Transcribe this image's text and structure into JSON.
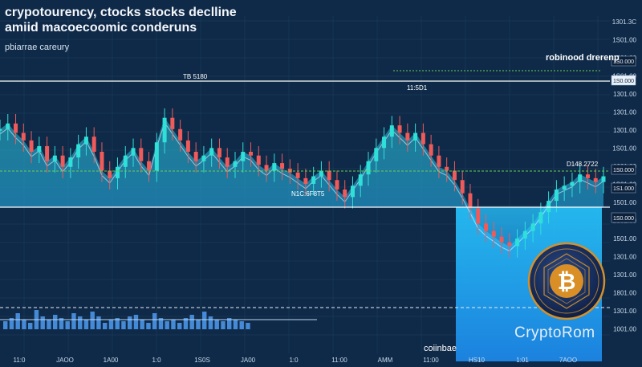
{
  "headline": {
    "line1": "crypotourency, ctocks stocks  declline",
    "line2": "amiid macoecoomic conderuns"
  },
  "subtitle": "pbiarrae careury",
  "brand_label": "robinood drerenp",
  "coinbase_label": "coiinbae",
  "watermark": "CryptoRom",
  "annotations": {
    "top_left": "TB 5180",
    "middle": "11:5D1",
    "right": "D148.2722",
    "lower_left": "N1C:6F8T5"
  },
  "colors": {
    "background": "#0f2a48",
    "bullish": "#2fe0d8",
    "bearish": "#ef5a5a",
    "area": "#39c7e0",
    "volume": "#4f9bf0",
    "highlight": "#2aa6ff",
    "logo_ring": "#d4902a"
  },
  "chart_data": {
    "type": "candlestick",
    "title": "crypotourency, ctocks stocks  declline amiid macoecoomic conderuns",
    "y_tick_labels": [
      "1301.3C",
      "1S01.00",
      "1301.00",
      "1S01.00",
      "1301.00",
      "1301.00",
      "1301.00",
      "1S01.00",
      "1001.00",
      "1S01.00",
      "1501.00",
      "1S01.00",
      "1501.00",
      "1301.00",
      "1301.00",
      "1801.00",
      "1301.00",
      "1001.00"
    ],
    "price_tags": [
      "1S0.000",
      "1S0.000",
      "1S0.000",
      "1S1.000",
      "1S0.000"
    ],
    "x_tick_labels": [
      "11:0",
      "JAOO",
      "1A00",
      "1:0",
      "1S0S",
      "JA00",
      "1:0",
      "11:00",
      "AMM",
      "11:00",
      "HS10",
      "1:01",
      "7AOO"
    ],
    "volume_series": [
      0.25,
      0.35,
      0.5,
      0.3,
      0.2,
      0.6,
      0.4,
      0.3,
      0.45,
      0.35,
      0.25,
      0.5,
      0.4,
      0.3,
      0.55,
      0.4,
      0.2,
      0.3,
      0.35,
      0.25,
      0.4,
      0.45,
      0.3,
      0.2,
      0.5,
      0.35,
      0.25,
      0.3,
      0.2,
      0.35,
      0.45,
      0.3,
      0.55,
      0.4,
      0.3,
      0.25,
      0.35,
      0.3,
      0.25,
      0.2
    ],
    "close_series": [
      0.72,
      0.75,
      0.7,
      0.66,
      0.6,
      0.63,
      0.55,
      0.58,
      0.52,
      0.57,
      0.64,
      0.68,
      0.6,
      0.5,
      0.46,
      0.52,
      0.58,
      0.62,
      0.55,
      0.5,
      0.65,
      0.78,
      0.72,
      0.66,
      0.6,
      0.55,
      0.58,
      0.62,
      0.57,
      0.52,
      0.55,
      0.6,
      0.58,
      0.53,
      0.5,
      0.54,
      0.51,
      0.49,
      0.46,
      0.43,
      0.47,
      0.5,
      0.45,
      0.4,
      0.36,
      0.42,
      0.48,
      0.55,
      0.62,
      0.68,
      0.74,
      0.7,
      0.66,
      0.7,
      0.64,
      0.58,
      0.52,
      0.5,
      0.45,
      0.38,
      0.3,
      0.22,
      0.18,
      0.15,
      0.12,
      0.1,
      0.14,
      0.18,
      0.22,
      0.28,
      0.34,
      0.4,
      0.42,
      0.44,
      0.48,
      0.46,
      0.44,
      0.47
    ]
  }
}
